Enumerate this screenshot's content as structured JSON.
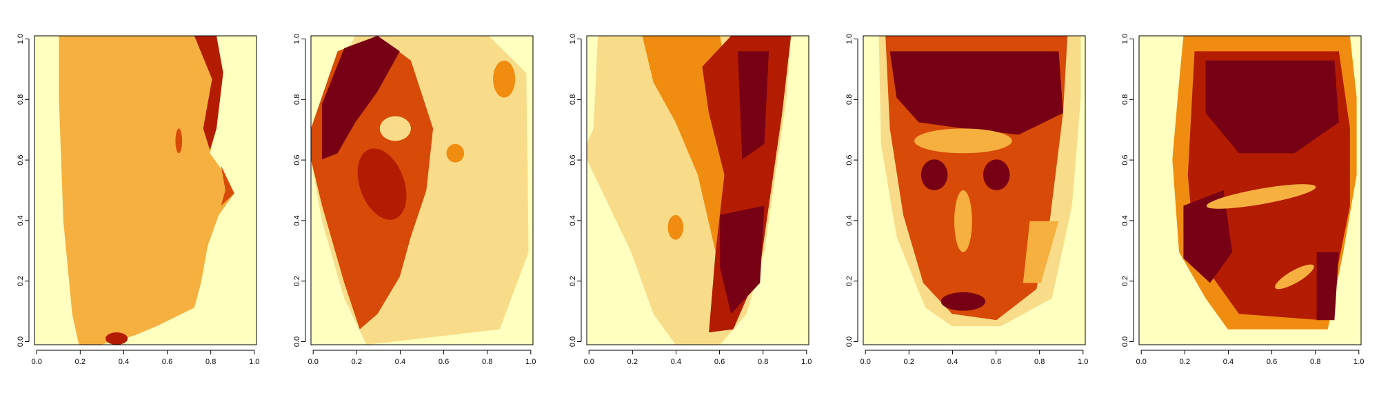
{
  "palette": [
    "#FFFFBF",
    "#F8DC8A",
    "#F5B040",
    "#F08C10",
    "#D84A08",
    "#B41C00",
    "#780014"
  ],
  "chart_data": [
    {
      "type": "heatmap",
      "title": "",
      "xlabel": "",
      "ylabel": "",
      "xlim": [
        0,
        1
      ],
      "ylim": [
        0,
        1
      ],
      "x_ticks": [
        "0.0",
        "0.2",
        "0.4",
        "0.6",
        "0.8",
        "1.0"
      ],
      "y_ticks": [
        "0.0",
        "0.2",
        "0.4",
        "0.6",
        "0.8",
        "1.0"
      ],
      "grid": false,
      "description_of_values": "face-image intensity levels on a 0-6 scale (yellow to dark red)",
      "layers": [
        {
          "shape": "face-profile-right",
          "level": 2
        }
      ]
    },
    {
      "type": "heatmap",
      "title": "",
      "xlabel": "",
      "ylabel": "",
      "xlim": [
        0,
        1
      ],
      "ylim": [
        0,
        1
      ],
      "x_ticks": [
        "0.0",
        "0.2",
        "0.4",
        "0.6",
        "0.8",
        "1.0"
      ],
      "y_ticks": [
        "0.0",
        "0.2",
        "0.4",
        "0.6",
        "0.8",
        "1.0"
      ],
      "grid": false,
      "layers": [
        {
          "shape": "head-oval",
          "level": 1
        },
        {
          "shape": "left-hair",
          "level": 4
        }
      ]
    },
    {
      "type": "heatmap",
      "title": "",
      "xlabel": "",
      "ylabel": "",
      "xlim": [
        0,
        1
      ],
      "ylim": [
        0,
        1
      ],
      "x_ticks": [
        "0.0",
        "0.2",
        "0.4",
        "0.6",
        "0.8",
        "1.0"
      ],
      "y_ticks": [
        "0.0",
        "0.2",
        "0.4",
        "0.6",
        "0.8",
        "1.0"
      ],
      "grid": false,
      "layers": [
        {
          "shape": "face-wedge",
          "level": 1
        },
        {
          "shape": "right-dark",
          "level": 5
        }
      ]
    },
    {
      "type": "heatmap",
      "title": "",
      "xlabel": "",
      "ylabel": "",
      "xlim": [
        0,
        1
      ],
      "ylim": [
        0,
        1
      ],
      "x_ticks": [
        "0.0",
        "0.2",
        "0.4",
        "0.6",
        "0.8",
        "1.0"
      ],
      "y_ticks": [
        "0.0",
        "0.2",
        "0.4",
        "0.6",
        "0.8",
        "1.0"
      ],
      "grid": false,
      "layers": [
        {
          "shape": "front-face",
          "level": 4
        }
      ]
    },
    {
      "type": "heatmap",
      "title": "",
      "xlabel": "",
      "ylabel": "",
      "xlim": [
        0,
        1
      ],
      "ylim": [
        0,
        1
      ],
      "x_ticks": [
        "0.0",
        "0.2",
        "0.4",
        "0.6",
        "0.8",
        "1.0"
      ],
      "y_ticks": [
        "0.0",
        "0.2",
        "0.4",
        "0.6",
        "0.8",
        "1.0"
      ],
      "grid": false,
      "layers": [
        {
          "shape": "face-turned-left",
          "level": 5
        }
      ]
    }
  ]
}
